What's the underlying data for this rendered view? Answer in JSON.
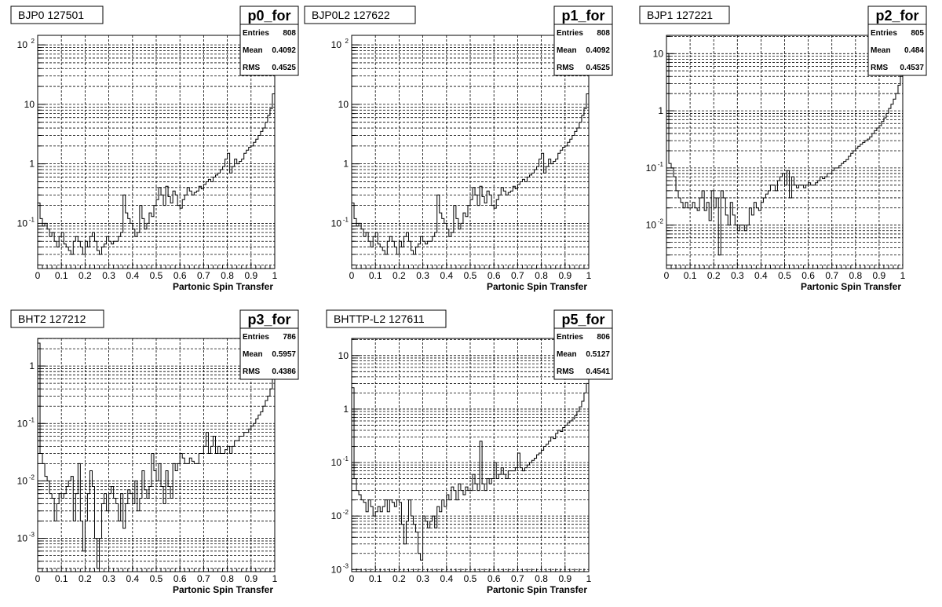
{
  "chart_data": [
    {
      "type": "histogram",
      "name_label": "BJP0 127501",
      "stats_title": "p0_for",
      "stats": [
        {
          "k": "Entries",
          "v": "808"
        },
        {
          "k": "Mean",
          "v": "0.4092"
        },
        {
          "k": "RMS",
          "v": "0.4525"
        }
      ],
      "xlabel": "Partonic Spin Transfer",
      "x_range": [
        0,
        1
      ],
      "x_ticks": [
        "0",
        "0.1",
        "0.2",
        "0.3",
        "0.4",
        "0.5",
        "0.6",
        "0.7",
        "0.8",
        "0.9",
        "1"
      ],
      "y_scale": "log",
      "y_range_log10": [
        -1.76,
        2.16
      ],
      "y_ticks": [
        {
          "label": "10",
          "exp": "-1",
          "log": -1
        },
        {
          "label": "1",
          "exp": "",
          "log": 0
        },
        {
          "label": "10",
          "exp": "",
          "log": 1
        },
        {
          "label": "10",
          "exp": "2",
          "log": 2
        }
      ],
      "grid": true,
      "bins": 100,
      "values": [
        0.22,
        0.12,
        0.09,
        0.1,
        0.08,
        0.06,
        0.07,
        0.05,
        0.04,
        0.06,
        0.07,
        0.045,
        0.04,
        0.035,
        0.03,
        0.05,
        0.06,
        0.05,
        0.04,
        0.03,
        0.05,
        0.04,
        0.06,
        0.07,
        0.05,
        0.035,
        0.03,
        0.04,
        0.045,
        0.06,
        0.05,
        0.045,
        0.05,
        0.05,
        0.06,
        0.07,
        0.3,
        0.15,
        0.12,
        0.1,
        0.08,
        0.06,
        0.07,
        0.2,
        0.12,
        0.08,
        0.1,
        0.15,
        0.13,
        0.2,
        0.25,
        0.4,
        0.3,
        0.2,
        0.42,
        0.28,
        0.22,
        0.35,
        0.3,
        0.2,
        0.18,
        0.25,
        0.3,
        0.4,
        0.35,
        0.3,
        0.33,
        0.35,
        0.42,
        0.38,
        0.45,
        0.5,
        0.55,
        0.5,
        0.6,
        0.65,
        0.7,
        0.8,
        0.9,
        1.2,
        1.5,
        0.7,
        0.9,
        1.2,
        1.0,
        1.1,
        1.2,
        1.5,
        1.7,
        1.9,
        2.0,
        2.3,
        2.6,
        3.0,
        3.5,
        4.0,
        5.0,
        6.5,
        8.5,
        15.0
      ]
    },
    {
      "type": "histogram",
      "name_label": "BJP0L2 127622",
      "stats_title": "p1_for",
      "stats": [
        {
          "k": "Entries",
          "v": "808"
        },
        {
          "k": "Mean",
          "v": "0.4092"
        },
        {
          "k": "RMS",
          "v": "0.4525"
        }
      ],
      "xlabel": "Partonic Spin Transfer",
      "x_range": [
        0,
        1
      ],
      "x_ticks": [
        "0",
        "0.1",
        "0.2",
        "0.3",
        "0.4",
        "0.5",
        "0.6",
        "0.7",
        "0.8",
        "0.9",
        "1"
      ],
      "y_scale": "log",
      "y_range_log10": [
        -1.76,
        2.16
      ],
      "y_ticks": [
        {
          "label": "10",
          "exp": "-1",
          "log": -1
        },
        {
          "label": "1",
          "exp": "",
          "log": 0
        },
        {
          "label": "10",
          "exp": "",
          "log": 1
        },
        {
          "label": "10",
          "exp": "2",
          "log": 2
        }
      ],
      "grid": true,
      "bins": 100,
      "values": [
        0.22,
        0.12,
        0.09,
        0.1,
        0.08,
        0.06,
        0.07,
        0.05,
        0.04,
        0.06,
        0.07,
        0.045,
        0.04,
        0.035,
        0.03,
        0.05,
        0.06,
        0.05,
        0.04,
        0.03,
        0.05,
        0.04,
        0.06,
        0.07,
        0.05,
        0.035,
        0.03,
        0.04,
        0.045,
        0.06,
        0.05,
        0.045,
        0.05,
        0.05,
        0.06,
        0.07,
        0.3,
        0.15,
        0.12,
        0.1,
        0.08,
        0.06,
        0.07,
        0.2,
        0.12,
        0.08,
        0.1,
        0.15,
        0.13,
        0.2,
        0.25,
        0.4,
        0.3,
        0.2,
        0.42,
        0.28,
        0.22,
        0.35,
        0.3,
        0.2,
        0.18,
        0.25,
        0.3,
        0.4,
        0.35,
        0.3,
        0.33,
        0.35,
        0.42,
        0.38,
        0.45,
        0.5,
        0.55,
        0.5,
        0.6,
        0.65,
        0.7,
        0.8,
        0.9,
        1.2,
        1.5,
        0.7,
        0.9,
        1.2,
        1.0,
        1.1,
        1.2,
        1.5,
        1.7,
        1.9,
        2.0,
        2.3,
        2.6,
        3.0,
        3.5,
        4.0,
        5.0,
        6.5,
        8.5,
        15.0
      ]
    },
    {
      "type": "histogram",
      "name_label": "BJP1 127221",
      "stats_title": "p2_for",
      "stats": [
        {
          "k": "Entries",
          "v": "805"
        },
        {
          "k": "Mean",
          "v": "0.484"
        },
        {
          "k": "RMS",
          "v": "0.4537"
        }
      ],
      "xlabel": "Partonic Spin Transfer",
      "x_range": [
        0,
        1
      ],
      "x_ticks": [
        "0",
        "0.1",
        "0.2",
        "0.3",
        "0.4",
        "0.5",
        "0.6",
        "0.7",
        "0.8",
        "0.9",
        "1"
      ],
      "y_scale": "log",
      "y_range_log10": [
        -2.76,
        1.32
      ],
      "y_ticks": [
        {
          "label": "10",
          "exp": "-2",
          "log": -2
        },
        {
          "label": "10",
          "exp": "-1",
          "log": -1
        },
        {
          "label": "1",
          "exp": "",
          "log": 0
        },
        {
          "label": "10",
          "exp": "",
          "log": 1
        }
      ],
      "grid": true,
      "bins": 100,
      "values": [
        10.0,
        0.12,
        0.1,
        0.07,
        0.04,
        0.03,
        0.025,
        0.02,
        0.025,
        0.02,
        0.02,
        0.025,
        0.02,
        0.018,
        0.03,
        0.04,
        0.018,
        0.025,
        0.012,
        0.04,
        0.02,
        0.03,
        0.003,
        0.04,
        0.03,
        0.015,
        0.01,
        0.025,
        0.015,
        0.01,
        0.008,
        0.01,
        0.01,
        0.008,
        0.01,
        0.02,
        0.015,
        0.025,
        0.02,
        0.018,
        0.025,
        0.03,
        0.035,
        0.04,
        0.05,
        0.05,
        0.04,
        0.06,
        0.07,
        0.08,
        0.05,
        0.09,
        0.03,
        0.07,
        0.05,
        0.045,
        0.05,
        0.05,
        0.045,
        0.05,
        0.055,
        0.05,
        0.05,
        0.055,
        0.06,
        0.07,
        0.065,
        0.07,
        0.08,
        0.08,
        0.09,
        0.1,
        0.1,
        0.11,
        0.12,
        0.13,
        0.14,
        0.16,
        0.18,
        0.2,
        0.22,
        0.24,
        0.26,
        0.28,
        0.3,
        0.32,
        0.35,
        0.4,
        0.45,
        0.5,
        0.55,
        0.65,
        0.75,
        0.9,
        1.1,
        1.3,
        1.6,
        2.0,
        2.8,
        4.0
      ]
    },
    {
      "type": "histogram",
      "name_label": "BHT2 127212",
      "stats_title": "p3_for",
      "stats": [
        {
          "k": "Entries",
          "v": "786"
        },
        {
          "k": "Mean",
          "v": "0.5957"
        },
        {
          "k": "RMS",
          "v": "0.4386"
        }
      ],
      "xlabel": "Partonic Spin Transfer",
      "x_range": [
        0,
        1
      ],
      "x_ticks": [
        "0",
        "0.1",
        "0.2",
        "0.3",
        "0.4",
        "0.5",
        "0.6",
        "0.7",
        "0.8",
        "0.9",
        "1"
      ],
      "y_scale": "log",
      "y_range_log10": [
        -3.58,
        0.48
      ],
      "y_ticks": [
        {
          "label": "10",
          "exp": "-3",
          "log": -3
        },
        {
          "label": "10",
          "exp": "-2",
          "log": -2
        },
        {
          "label": "10",
          "exp": "-1",
          "log": -1
        },
        {
          "label": "1",
          "exp": "",
          "log": 0
        }
      ],
      "grid": true,
      "bins": 100,
      "values": [
        2.5,
        0.03,
        0.02,
        0.012,
        0.01,
        0.006,
        0.005,
        0.002,
        0.004,
        0.006,
        0.005,
        0.006,
        0.008,
        0.01,
        0.012,
        0.002,
        0.006,
        0.02,
        0.002,
        0.0006,
        0.002,
        0.006,
        0.015,
        0.008,
        0.001,
        0.0003,
        0.001,
        0.004,
        0.006,
        0.003,
        0.006,
        0.008,
        0.005,
        0.004,
        0.002,
        0.006,
        0.0015,
        0.004,
        0.007,
        0.006,
        0.004,
        0.01,
        0.003,
        0.005,
        0.015,
        0.007,
        0.005,
        0.008,
        0.03,
        0.015,
        0.01,
        0.02,
        0.008,
        0.004,
        0.015,
        0.008,
        0.005,
        0.02,
        0.015,
        0.02,
        0.03,
        0.025,
        0.02,
        0.02,
        0.025,
        0.022,
        0.02,
        0.02,
        0.03,
        0.03,
        0.04,
        0.07,
        0.03,
        0.04,
        0.06,
        0.03,
        0.04,
        0.03,
        0.03,
        0.035,
        0.04,
        0.03,
        0.04,
        0.05,
        0.05,
        0.06,
        0.06,
        0.07,
        0.07,
        0.08,
        0.09,
        0.1,
        0.12,
        0.14,
        0.16,
        0.2,
        0.25,
        0.3,
        0.4,
        0.6
      ]
    },
    {
      "type": "histogram",
      "name_label": "BHTTP-L2 127611",
      "stats_title": "p5_for",
      "stats": [
        {
          "k": "Entries",
          "v": "806"
        },
        {
          "k": "Mean",
          "v": "0.5127"
        },
        {
          "k": "RMS",
          "v": "0.4541"
        }
      ],
      "xlabel": "Partonic Spin Transfer",
      "x_range": [
        0,
        1
      ],
      "x_ticks": [
        "0",
        "0.1",
        "0.2",
        "0.3",
        "0.4",
        "0.5",
        "0.6",
        "0.7",
        "0.8",
        "0.9",
        "1"
      ],
      "y_scale": "log",
      "y_range_log10": [
        -3.04,
        1.32
      ],
      "y_ticks": [
        {
          "label": "10",
          "exp": "-3",
          "log": -3
        },
        {
          "label": "10",
          "exp": "-2",
          "log": -2
        },
        {
          "label": "10",
          "exp": "-1",
          "log": -1
        },
        {
          "label": "1",
          "exp": "",
          "log": 0
        },
        {
          "label": "10",
          "exp": "",
          "log": 1
        }
      ],
      "grid": true,
      "bins": 100,
      "values": [
        2.5,
        0.05,
        0.03,
        0.025,
        0.02,
        0.018,
        0.012,
        0.02,
        0.015,
        0.01,
        0.012,
        0.015,
        0.012,
        0.015,
        0.02,
        0.012,
        0.02,
        0.018,
        0.015,
        0.02,
        0.018,
        0.007,
        0.003,
        0.008,
        0.02,
        0.01,
        0.007,
        0.005,
        0.002,
        0.0015,
        0.01,
        0.008,
        0.006,
        0.008,
        0.01,
        0.006,
        0.015,
        0.012,
        0.02,
        0.015,
        0.025,
        0.02,
        0.035,
        0.03,
        0.02,
        0.04,
        0.03,
        0.025,
        0.035,
        0.03,
        0.03,
        0.06,
        0.04,
        0.03,
        0.25,
        0.04,
        0.03,
        0.05,
        0.04,
        0.05,
        0.1,
        0.05,
        0.06,
        0.08,
        0.06,
        0.05,
        0.07,
        0.07,
        0.07,
        0.08,
        0.15,
        0.08,
        0.07,
        0.08,
        0.09,
        0.1,
        0.11,
        0.12,
        0.14,
        0.15,
        0.17,
        0.2,
        0.22,
        0.25,
        0.3,
        0.28,
        0.35,
        0.4,
        0.38,
        0.45,
        0.5,
        0.55,
        0.6,
        0.65,
        0.75,
        0.9,
        1.1,
        1.4,
        2.0,
        3.0
      ]
    }
  ]
}
